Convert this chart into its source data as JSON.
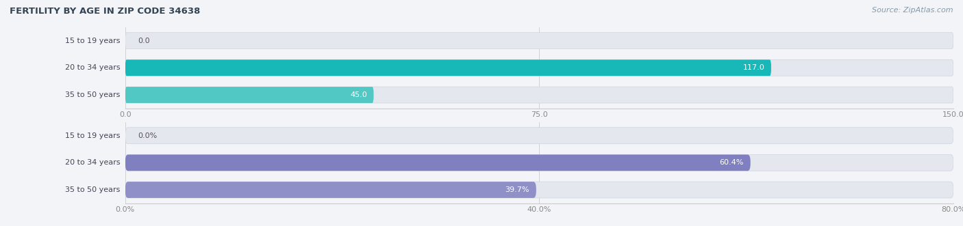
{
  "title": "FERTILITY BY AGE IN ZIP CODE 34638",
  "source": "Source: ZipAtlas.com",
  "background_color": "#f2f4f7",
  "bar_bg_color": "#e4e7ee",
  "top_chart": {
    "categories": [
      "15 to 19 years",
      "20 to 34 years",
      "35 to 50 years"
    ],
    "values": [
      0.0,
      117.0,
      45.0
    ],
    "bar_colors": [
      "#72cece",
      "#18b8b8",
      "#52c8c4"
    ],
    "xlim_max": 150.0,
    "xticks": [
      0.0,
      75.0,
      150.0
    ],
    "xtick_labels": [
      "0.0",
      "75.0",
      "150.0"
    ],
    "value_labels": [
      "0.0",
      "117.0",
      "45.0"
    ],
    "value_inside": [
      false,
      true,
      true
    ]
  },
  "bottom_chart": {
    "categories": [
      "15 to 19 years",
      "20 to 34 years",
      "35 to 50 years"
    ],
    "values": [
      0.0,
      60.4,
      39.7
    ],
    "bar_colors": [
      "#b8bbdd",
      "#8080c0",
      "#9090c8"
    ],
    "xlim_max": 80.0,
    "xticks": [
      0.0,
      40.0,
      80.0
    ],
    "xtick_labels": [
      "0.0%",
      "40.0%",
      "80.0%"
    ],
    "value_labels": [
      "0.0%",
      "60.4%",
      "39.7%"
    ],
    "value_inside": [
      false,
      true,
      true
    ]
  }
}
